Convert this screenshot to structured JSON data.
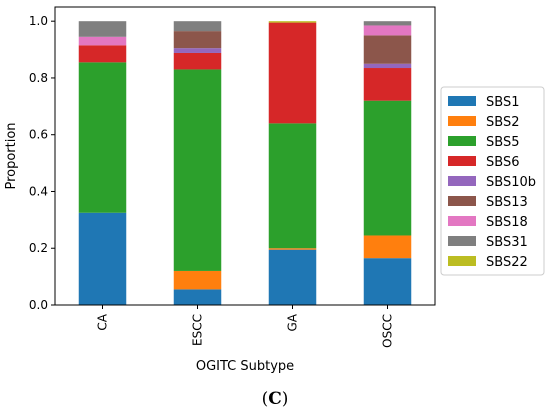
{
  "chart_data": {
    "type": "bar",
    "stacked": true,
    "categories": [
      "CA",
      "ESCC",
      "GA",
      "OSCC"
    ],
    "xlabel": "OGITC Subtype",
    "ylabel": "Proportion",
    "ylim": [
      0,
      1.05
    ],
    "yticks": [
      "0.0",
      "0.2",
      "0.4",
      "0.6",
      "0.8",
      "1.0"
    ],
    "legend_position": "right",
    "series": [
      {
        "name": "SBS1",
        "color": "#1f77b4",
        "values": [
          0.325,
          0.055,
          0.195,
          0.165
        ]
      },
      {
        "name": "SBS2",
        "color": "#ff7f0e",
        "values": [
          0.0,
          0.065,
          0.005,
          0.08
        ]
      },
      {
        "name": "SBS5",
        "color": "#2ca02c",
        "values": [
          0.53,
          0.71,
          0.44,
          0.475
        ]
      },
      {
        "name": "SBS6",
        "color": "#d62728",
        "values": [
          0.06,
          0.058,
          0.355,
          0.115
        ]
      },
      {
        "name": "SBS10b",
        "color": "#9467bd",
        "values": [
          0.0,
          0.017,
          0.0,
          0.015
        ]
      },
      {
        "name": "SBS13",
        "color": "#8c564b",
        "values": [
          0.0,
          0.06,
          0.0,
          0.1
        ]
      },
      {
        "name": "SBS18",
        "color": "#e377c2",
        "values": [
          0.03,
          0.0,
          0.0,
          0.035
        ]
      },
      {
        "name": "SBS31",
        "color": "#7f7f7f",
        "values": [
          0.055,
          0.035,
          0.0,
          0.015
        ]
      },
      {
        "name": "SBS22",
        "color": "#bcbd22",
        "values": [
          0.0,
          0.0,
          0.005,
          0.0
        ]
      }
    ]
  },
  "caption": {
    "open": "(",
    "letter": "C",
    "close": ")"
  }
}
